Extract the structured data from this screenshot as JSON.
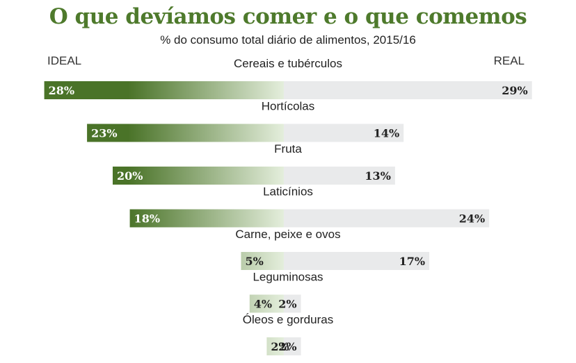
{
  "title": "O que devíamos comer e o que comemos",
  "subtitle": "% do consumo total diário de alimentos, 2015/16",
  "colors": {
    "title": "#4e7a2c",
    "ideal_dark": "#4a7328",
    "ideal_light": "#e4eedc",
    "real_bar": "#e9eaeb",
    "ideal_text_on_dark": "#ffffff",
    "ideal_text_on_light": "#222222",
    "real_text": "#222222"
  },
  "chart_data": {
    "type": "bar",
    "title": "O que devíamos comer e o que comemos",
    "subtitle": "% do consumo total diário de alimentos, 2015/16",
    "orientation": "diverging-horizontal",
    "left_label": "IDEAL",
    "right_label": "REAL",
    "unit": "%",
    "categories": [
      "Cereais e tubérculos",
      "Hortícolas",
      "Fruta",
      "Laticínios",
      "Carne, peixe e ovos",
      "Leguminosas",
      "Óleos e gorduras"
    ],
    "series": [
      {
        "name": "IDEAL",
        "values": [
          28,
          23,
          20,
          18,
          5,
          4,
          2
        ]
      },
      {
        "name": "REAL",
        "values": [
          29,
          14,
          13,
          24,
          17,
          2,
          2
        ]
      }
    ],
    "value_labels_ideal": [
      "28%",
      "23%",
      "20%",
      "18%",
      "5%",
      "4%",
      "2%"
    ],
    "value_labels_real": [
      "29%",
      "14%",
      "13%",
      "24%",
      "17%",
      "2%",
      "2%"
    ]
  }
}
